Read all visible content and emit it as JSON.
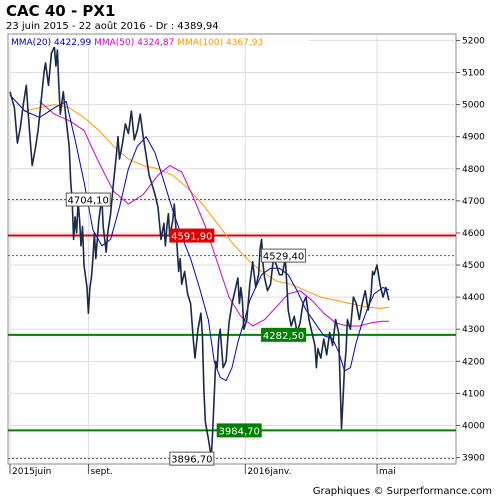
{
  "title": "CAC 40 - PX1",
  "subtitle": "23 juin 2015 - 22 août 2016 - Dr : 4389,94",
  "footer": "Graphiques © Surperformance.com",
  "chart_data": {
    "type": "line",
    "ylim": [
      3880,
      5220
    ],
    "yticks": [
      3900,
      4000,
      4100,
      4200,
      4300,
      4400,
      4500,
      4600,
      4700,
      4800,
      4900,
      5000,
      5100,
      5200
    ],
    "ytick_labels": [
      "3900",
      "4000",
      "4100",
      "4200",
      "4300",
      "4400",
      "4500",
      "4600",
      "4700",
      "4800",
      "4900",
      "5000",
      "5100",
      "5200"
    ],
    "x_range": [
      0,
      300
    ],
    "x_ticks": [
      {
        "x": 0,
        "label": "2015juin"
      },
      {
        "x": 53,
        "label": "sept."
      },
      {
        "x": 159,
        "label": "2016janv."
      },
      {
        "x": 248,
        "label": "mai"
      }
    ],
    "grid": true,
    "legend": [
      {
        "label": "MMA(20)",
        "value": "4422,99",
        "color": "#0000cc"
      },
      {
        "label": "MMA(50)",
        "value": "4324,87",
        "color": "#cc00cc"
      },
      {
        "label": "MMA(100)",
        "value": "4367,93",
        "color": "#ff9900"
      }
    ],
    "price": {
      "color": "#1a2a4a",
      "points": [
        [
          0,
          5040
        ],
        [
          3,
          4990
        ],
        [
          5,
          4880
        ],
        [
          7,
          4930
        ],
        [
          9,
          5000
        ],
        [
          11,
          5060
        ],
        [
          12,
          4990
        ],
        [
          14,
          4870
        ],
        [
          15,
          4810
        ],
        [
          17,
          4860
        ],
        [
          19,
          4920
        ],
        [
          21,
          5010
        ],
        [
          23,
          5100
        ],
        [
          24,
          5130
        ],
        [
          26,
          5060
        ],
        [
          28,
          5160
        ],
        [
          30,
          5180
        ],
        [
          31,
          5120
        ],
        [
          32,
          5170
        ],
        [
          33,
          5060
        ],
        [
          34,
          4970
        ],
        [
          36,
          5040
        ],
        [
          38,
          4950
        ],
        [
          40,
          4870
        ],
        [
          41,
          4760
        ],
        [
          42,
          4700
        ],
        [
          43,
          4580
        ],
        [
          44,
          4650
        ],
        [
          45,
          4600
        ],
        [
          46,
          4700
        ],
        [
          47,
          4640
        ],
        [
          48,
          4560
        ],
        [
          49,
          4620
        ],
        [
          50,
          4500
        ],
        [
          52,
          4430
        ],
        [
          53,
          4350
        ],
        [
          54,
          4430
        ],
        [
          55,
          4460
        ],
        [
          56,
          4520
        ],
        [
          57,
          4600
        ],
        [
          58,
          4520
        ],
        [
          60,
          4640
        ],
        [
          62,
          4710
        ],
        [
          63,
          4620
        ],
        [
          65,
          4540
        ],
        [
          66,
          4600
        ],
        [
          68,
          4660
        ],
        [
          70,
          4760
        ],
        [
          72,
          4850
        ],
        [
          73,
          4900
        ],
        [
          74,
          4830
        ],
        [
          76,
          4880
        ],
        [
          78,
          4940
        ],
        [
          80,
          4910
        ],
        [
          82,
          4980
        ],
        [
          84,
          4890
        ],
        [
          86,
          4920
        ],
        [
          88,
          4970
        ],
        [
          90,
          4900
        ],
        [
          92,
          4840
        ],
        [
          94,
          4780
        ],
        [
          96,
          4750
        ],
        [
          98,
          4720
        ],
        [
          100,
          4680
        ],
        [
          102,
          4580
        ],
        [
          104,
          4630
        ],
        [
          105,
          4560
        ],
        [
          106,
          4620
        ],
        [
          107,
          4660
        ],
        [
          108,
          4590
        ],
        [
          110,
          4640
        ],
        [
          111,
          4690
        ],
        [
          112,
          4620
        ],
        [
          114,
          4480
        ],
        [
          115,
          4520
        ],
        [
          116,
          4440
        ],
        [
          118,
          4480
        ],
        [
          120,
          4410
        ],
        [
          122,
          4380
        ],
        [
          124,
          4260
        ],
        [
          125,
          4210
        ],
        [
          127,
          4300
        ],
        [
          129,
          4350
        ],
        [
          130,
          4280
        ],
        [
          131,
          4110
        ],
        [
          132,
          4010
        ],
        [
          134,
          3960
        ],
        [
          136,
          3900
        ],
        [
          137,
          3990
        ],
        [
          138,
          4090
        ],
        [
          139,
          4200
        ],
        [
          140,
          4180
        ],
        [
          141,
          4270
        ],
        [
          142,
          4300
        ],
        [
          144,
          4180
        ],
        [
          146,
          4200
        ],
        [
          148,
          4320
        ],
        [
          150,
          4380
        ],
        [
          152,
          4420
        ],
        [
          154,
          4460
        ],
        [
          155,
          4380
        ],
        [
          156,
          4430
        ],
        [
          157,
          4390
        ],
        [
          158,
          4300
        ],
        [
          160,
          4330
        ],
        [
          162,
          4440
        ],
        [
          164,
          4510
        ],
        [
          166,
          4430
        ],
        [
          168,
          4470
        ],
        [
          169,
          4550
        ],
        [
          170,
          4580
        ],
        [
          171,
          4500
        ],
        [
          172,
          4460
        ],
        [
          174,
          4420
        ],
        [
          176,
          4440
        ],
        [
          178,
          4520
        ],
        [
          180,
          4500
        ],
        [
          182,
          4470
        ],
        [
          184,
          4470
        ],
        [
          186,
          4520
        ],
        [
          187,
          4440
        ],
        [
          188,
          4360
        ],
        [
          190,
          4310
        ],
        [
          192,
          4340
        ],
        [
          194,
          4290
        ],
        [
          196,
          4320
        ],
        [
          198,
          4380
        ],
        [
          200,
          4400
        ],
        [
          202,
          4330
        ],
        [
          204,
          4290
        ],
        [
          206,
          4250
        ],
        [
          207,
          4180
        ],
        [
          208,
          4240
        ],
        [
          210,
          4210
        ],
        [
          212,
          4270
        ],
        [
          214,
          4220
        ],
        [
          216,
          4290
        ],
        [
          218,
          4250
        ],
        [
          220,
          4330
        ],
        [
          222,
          4290
        ],
        [
          224,
          3990
        ],
        [
          225,
          4080
        ],
        [
          226,
          4180
        ],
        [
          227,
          4230
        ],
        [
          228,
          4330
        ],
        [
          230,
          4300
        ],
        [
          232,
          4400
        ],
        [
          234,
          4380
        ],
        [
          236,
          4330
        ],
        [
          238,
          4380
        ],
        [
          240,
          4420
        ],
        [
          242,
          4360
        ],
        [
          244,
          4410
        ],
        [
          245,
          4480
        ],
        [
          246,
          4470
        ],
        [
          248,
          4500
        ],
        [
          250,
          4440
        ],
        [
          252,
          4400
        ],
        [
          254,
          4430
        ],
        [
          256,
          4390
        ]
      ]
    },
    "ma20": {
      "color": "#0000cc",
      "points": [
        [
          0,
          5030
        ],
        [
          10,
          4980
        ],
        [
          20,
          4960
        ],
        [
          30,
          4990
        ],
        [
          38,
          5010
        ],
        [
          44,
          4890
        ],
        [
          50,
          4760
        ],
        [
          56,
          4610
        ],
        [
          62,
          4560
        ],
        [
          68,
          4580
        ],
        [
          74,
          4680
        ],
        [
          80,
          4800
        ],
        [
          86,
          4870
        ],
        [
          92,
          4900
        ],
        [
          98,
          4850
        ],
        [
          104,
          4760
        ],
        [
          110,
          4670
        ],
        [
          116,
          4590
        ],
        [
          122,
          4520
        ],
        [
          128,
          4430
        ],
        [
          134,
          4330
        ],
        [
          138,
          4200
        ],
        [
          142,
          4150
        ],
        [
          146,
          4140
        ],
        [
          150,
          4180
        ],
        [
          154,
          4260
        ],
        [
          158,
          4320
        ],
        [
          162,
          4390
        ],
        [
          166,
          4430
        ],
        [
          170,
          4470
        ],
        [
          176,
          4490
        ],
        [
          182,
          4490
        ],
        [
          188,
          4470
        ],
        [
          194,
          4420
        ],
        [
          200,
          4360
        ],
        [
          206,
          4320
        ],
        [
          212,
          4280
        ],
        [
          218,
          4270
        ],
        [
          222,
          4230
        ],
        [
          226,
          4170
        ],
        [
          230,
          4180
        ],
        [
          234,
          4260
        ],
        [
          238,
          4320
        ],
        [
          242,
          4370
        ],
        [
          246,
          4410
        ],
        [
          252,
          4430
        ],
        [
          256,
          4423
        ]
      ]
    },
    "ma50": {
      "color": "#cc00cc",
      "points": [
        [
          20,
          5010
        ],
        [
          30,
          4970
        ],
        [
          40,
          4950
        ],
        [
          50,
          4920
        ],
        [
          60,
          4820
        ],
        [
          70,
          4730
        ],
        [
          80,
          4690
        ],
        [
          90,
          4720
        ],
        [
          100,
          4780
        ],
        [
          108,
          4810
        ],
        [
          116,
          4790
        ],
        [
          124,
          4710
        ],
        [
          132,
          4620
        ],
        [
          140,
          4510
        ],
        [
          148,
          4400
        ],
        [
          156,
          4340
        ],
        [
          164,
          4310
        ],
        [
          172,
          4330
        ],
        [
          180,
          4370
        ],
        [
          188,
          4410
        ],
        [
          196,
          4420
        ],
        [
          204,
          4390
        ],
        [
          212,
          4350
        ],
        [
          220,
          4320
        ],
        [
          228,
          4310
        ],
        [
          236,
          4310
        ],
        [
          244,
          4320
        ],
        [
          252,
          4325
        ],
        [
          256,
          4325
        ]
      ]
    },
    "ma100": {
      "color": "#ff9900",
      "points": [
        [
          10,
          4980
        ],
        [
          20,
          4990
        ],
        [
          30,
          5000
        ],
        [
          40,
          4990
        ],
        [
          50,
          4960
        ],
        [
          60,
          4920
        ],
        [
          70,
          4870
        ],
        [
          80,
          4830
        ],
        [
          90,
          4810
        ],
        [
          100,
          4800
        ],
        [
          110,
          4780
        ],
        [
          120,
          4740
        ],
        [
          130,
          4690
        ],
        [
          140,
          4630
        ],
        [
          150,
          4570
        ],
        [
          160,
          4520
        ],
        [
          170,
          4480
        ],
        [
          180,
          4450
        ],
        [
          190,
          4440
        ],
        [
          200,
          4420
        ],
        [
          210,
          4400
        ],
        [
          220,
          4390
        ],
        [
          230,
          4380
        ],
        [
          240,
          4370
        ],
        [
          250,
          4365
        ],
        [
          256,
          4368
        ]
      ]
    },
    "levels": [
      {
        "value": 4704.1,
        "label": "4704,10",
        "style": "dashed",
        "color": "#555555",
        "label_x": 38,
        "box": "white"
      },
      {
        "value": 4591.9,
        "label": "4591,90",
        "style": "solid",
        "color": "#e00000",
        "label_x": 108,
        "box": "red"
      },
      {
        "value": 4529.4,
        "label": "4529,40",
        "style": "dashed",
        "color": "#555555",
        "label_x": 170,
        "box": "white"
      },
      {
        "value": 4282.5,
        "label": "4282,50",
        "style": "solid",
        "color": "#008000",
        "label_x": 170,
        "box": "green"
      },
      {
        "value": 3984.7,
        "label": "3984,70",
        "style": "solid",
        "color": "#008000",
        "label_x": 140,
        "box": "green"
      },
      {
        "value": 3896.7,
        "label": "3896,70",
        "style": "dashed",
        "color": "#555555",
        "label_x": 108,
        "box": "white"
      }
    ]
  }
}
